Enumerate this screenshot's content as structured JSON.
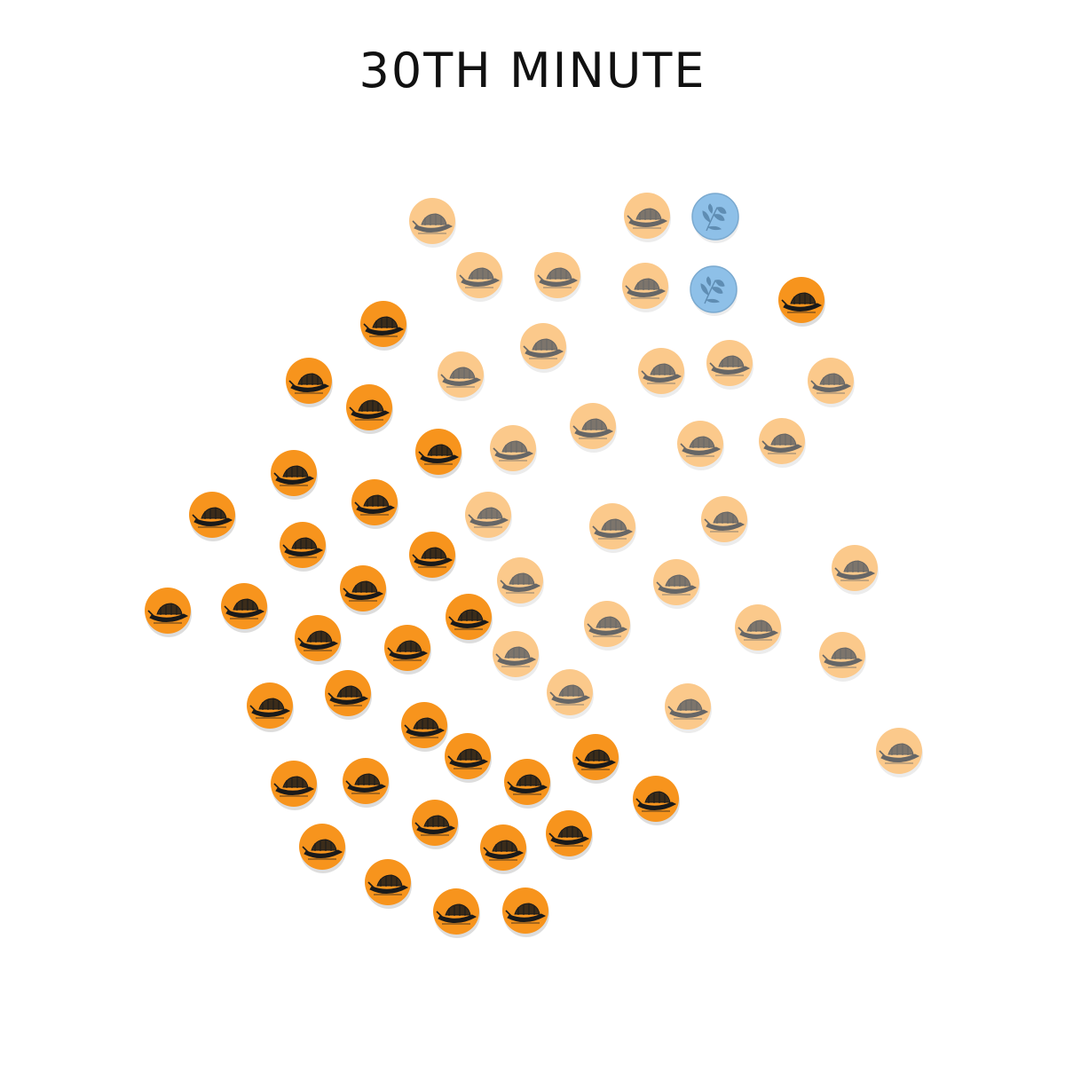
{
  "title": "30TH MINUTE",
  "colors": {
    "active": "#f7941d",
    "faded": "#fbc98b",
    "blue": "#8ec0e8",
    "icon_dark": "#1a1a1a",
    "icon_faded": "#666666",
    "shadow": "#d9d9d9"
  },
  "legend_note": "",
  "tokens": {
    "icon_boat": "boat-icon",
    "icon_plant": "plant-icon",
    "states": [
      "active",
      "faded",
      "blue"
    ]
  }
}
